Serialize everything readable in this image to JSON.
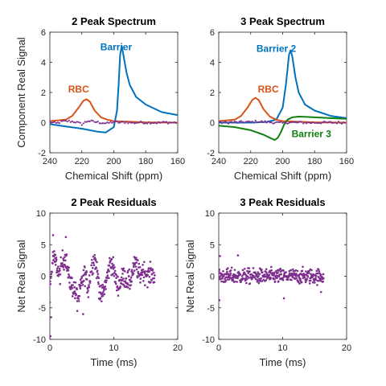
{
  "chart_data": [
    {
      "type": "line",
      "title": "2 Peak Spectrum",
      "xlabel": "Chemical Shift (ppm)",
      "ylabel": "Component Real Signal",
      "xlim": [
        240,
        160
      ],
      "ylim": [
        -2,
        6
      ],
      "x_reversed": true,
      "xticks": [
        240,
        220,
        200,
        180,
        160
      ],
      "yticks": [
        -2,
        0,
        2,
        4,
        6
      ],
      "series": [
        {
          "name": "Barrier",
          "color": "#0072bd",
          "x": [
            240,
            230,
            220,
            210,
            205,
            200,
            198,
            197,
            196,
            195,
            194,
            192,
            190,
            186,
            180,
            170,
            160
          ],
          "y": [
            -0.1,
            -0.25,
            -0.4,
            -0.6,
            -0.65,
            -0.3,
            0.8,
            2.5,
            4.5,
            5.1,
            4.5,
            3.3,
            2.5,
            1.7,
            1.2,
            0.7,
            0.5
          ]
        },
        {
          "name": "RBC",
          "color": "#d95319",
          "x": [
            240,
            230,
            226,
            222,
            219,
            217,
            215,
            212,
            208,
            204,
            200,
            180,
            160
          ],
          "y": [
            0.1,
            0.2,
            0.45,
            1.0,
            1.45,
            1.55,
            1.4,
            0.8,
            0.35,
            0.2,
            0.1,
            0.02,
            0.0
          ]
        },
        {
          "name": "",
          "color": "#7e2f8e",
          "style": "dots",
          "x": [
            240,
            236,
            232,
            228,
            224,
            220,
            216,
            212,
            208,
            204,
            200,
            196,
            192,
            188,
            184,
            180,
            176,
            172,
            168,
            164,
            160
          ],
          "y": [
            0.05,
            -0.05,
            0.08,
            0.1,
            0.05,
            -0.1,
            0.12,
            0.05,
            0.0,
            -0.05,
            0.05,
            0.0,
            0.03,
            -0.02,
            0.02,
            0.0,
            0.01,
            -0.01,
            0.02,
            0.0,
            0.01
          ]
        }
      ],
      "annotations": [
        {
          "text": "Barrier",
          "x": 198.5,
          "y": 4.8,
          "color": "#0072bd"
        },
        {
          "text": "RBC",
          "x": 222,
          "y": 2.0,
          "color": "#d95319"
        }
      ]
    },
    {
      "type": "line",
      "title": "3 Peak Spectrum",
      "xlabel": "Chemical Shift (ppm)",
      "ylabel": "",
      "xlim": [
        240,
        160
      ],
      "ylim": [
        -2,
        6
      ],
      "x_reversed": true,
      "xticks": [
        240,
        220,
        200,
        180,
        160
      ],
      "yticks": [
        -2,
        0,
        2,
        4,
        6
      ],
      "series": [
        {
          "name": "Barrier 2",
          "color": "#0072bd",
          "x": [
            240,
            220,
            210,
            204,
            200,
            198,
            196,
            195,
            194,
            192,
            190,
            186,
            180,
            170,
            160
          ],
          "y": [
            0.0,
            0.0,
            0.05,
            0.2,
            1.0,
            2.5,
            4.5,
            4.8,
            4.4,
            3.0,
            2.0,
            1.2,
            0.8,
            0.45,
            0.3
          ]
        },
        {
          "name": "RBC",
          "color": "#d95319",
          "x": [
            240,
            230,
            226,
            222,
            219,
            217,
            215,
            212,
            208,
            204,
            200,
            180,
            160
          ],
          "y": [
            0.1,
            0.2,
            0.45,
            1.0,
            1.5,
            1.65,
            1.5,
            0.9,
            0.4,
            0.2,
            0.1,
            0.02,
            0.0
          ]
        },
        {
          "name": "Barrier 3",
          "color": "#118011",
          "x": [
            240,
            230,
            220,
            212,
            208,
            205,
            203,
            201,
            199,
            197,
            194,
            190,
            185,
            180,
            170,
            160
          ],
          "y": [
            -0.2,
            -0.3,
            -0.5,
            -0.8,
            -1.0,
            -1.15,
            -1.0,
            -0.6,
            -0.1,
            0.2,
            0.35,
            0.4,
            0.38,
            0.35,
            0.3,
            0.25
          ]
        },
        {
          "name": "",
          "color": "#7e2f8e",
          "style": "dots",
          "x": [
            240,
            236,
            232,
            228,
            224,
            220,
            216,
            212,
            208,
            204,
            200,
            196,
            192,
            188,
            184,
            180,
            176,
            172,
            168,
            164,
            160
          ],
          "y": [
            0.02,
            0.0,
            0.03,
            0.02,
            0.05,
            0.03,
            0.08,
            0.05,
            0.03,
            0.0,
            -0.03,
            0.02,
            0.0,
            0.01,
            -0.01,
            0.0,
            0.01,
            0.0,
            0.0,
            0.01,
            0.0
          ]
        }
      ],
      "annotations": [
        {
          "text": "Barrier 2",
          "x": 204,
          "y": 4.7,
          "color": "#0072bd"
        },
        {
          "text": "RBC",
          "x": 209,
          "y": 2.0,
          "color": "#d95319"
        },
        {
          "text": "Barrier 3",
          "x": 182,
          "y": -0.95,
          "color": "#118011"
        }
      ]
    },
    {
      "type": "scatter",
      "title": "2 Peak Residuals",
      "xlabel": "Time (ms)",
      "ylabel": "Net Real Signal",
      "xlim": [
        0,
        20
      ],
      "ylim": [
        -10,
        10
      ],
      "xticks": [
        0,
        10,
        20
      ],
      "yticks": [
        -10,
        -5,
        0,
        5,
        10
      ],
      "point_count": 380,
      "time_range": [
        0,
        16.4
      ],
      "color": "#7e2f8e",
      "trend_t": [
        0,
        0.5,
        1,
        1.5,
        2,
        2.5,
        3,
        3.5,
        4,
        4.5,
        5,
        5.5,
        6,
        6.5,
        7,
        7.5,
        8,
        8.5,
        9,
        9.5,
        10,
        10.5,
        11,
        11.5,
        12,
        12.5,
        13,
        13.5,
        14,
        14.5,
        15,
        15.5,
        16,
        16.4
      ],
      "trend_y": [
        -2,
        3,
        2,
        0,
        2.5,
        3,
        -0.5,
        -1.5,
        -2.5,
        -3.5,
        -1,
        0.5,
        -2,
        1.5,
        3,
        0,
        -3.5,
        -2,
        0,
        2.5,
        1,
        -1.5,
        -1,
        0,
        -0.5,
        -1,
        1,
        2,
        0,
        1,
        0.5,
        0,
        0.5,
        0
      ],
      "noise": 1.5,
      "outliers": [
        [
          0.1,
          -9.5
        ],
        [
          0.2,
          -6.5
        ],
        [
          0.5,
          6.5
        ],
        [
          5.2,
          -6
        ],
        [
          4.3,
          -5.5
        ],
        [
          2.5,
          6.2
        ]
      ]
    },
    {
      "type": "scatter",
      "title": "3 Peak Residuals",
      "xlabel": "Time (ms)",
      "ylabel": "Net Real Signal",
      "xlim": [
        0,
        20
      ],
      "ylim": [
        -10,
        10
      ],
      "xticks": [
        0,
        10,
        20
      ],
      "yticks": [
        -10,
        -5,
        0,
        5,
        10
      ],
      "point_count": 380,
      "time_range": [
        0,
        16.4
      ],
      "color": "#7e2f8e",
      "trend_t": [
        0,
        4,
        8,
        12,
        16.4
      ],
      "trend_y": [
        0,
        0,
        0,
        0,
        0
      ],
      "noise": 1.1,
      "outliers": [
        [
          0.1,
          -3.8
        ],
        [
          0.2,
          3.2
        ],
        [
          3.0,
          3.3
        ],
        [
          10.2,
          -3.5
        ],
        [
          16,
          -2.5
        ]
      ]
    }
  ]
}
